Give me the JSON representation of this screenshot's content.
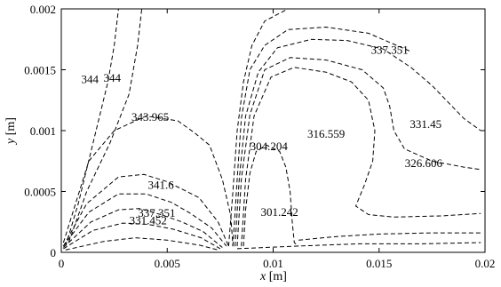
{
  "chart_data": {
    "type": "contour",
    "title": "",
    "xlabel": {
      "var": "x",
      "unit": " [m]"
    },
    "ylabel": {
      "var": "y",
      "unit": " [m]"
    },
    "xlim": [
      0,
      0.02
    ],
    "ylim": [
      0,
      0.002
    ],
    "x_ticks": [
      {
        "value": 0,
        "label": "0"
      },
      {
        "value": 0.005,
        "label": "0.005"
      },
      {
        "value": 0.01,
        "label": "0.01"
      },
      {
        "value": 0.015,
        "label": "0.015"
      },
      {
        "value": 0.02,
        "label": "0.02"
      }
    ],
    "y_ticks": [
      {
        "value": 0,
        "label": "0"
      },
      {
        "value": 0.0005,
        "label": "0.0005"
      },
      {
        "value": 0.001,
        "label": "0.001"
      },
      {
        "value": 0.0015,
        "label": "0.0015"
      },
      {
        "value": 0.002,
        "label": "0.002"
      }
    ],
    "line_style": "dashed",
    "contour_labels": [
      {
        "text": "344",
        "x": 0.00135,
        "y": 0.00142
      },
      {
        "text": "344",
        "x": 0.0024,
        "y": 0.00143
      },
      {
        "text": "343.965",
        "x": 0.0042,
        "y": 0.00111
      },
      {
        "text": "341.6",
        "x": 0.0047,
        "y": 0.00055
      },
      {
        "text": "337.351",
        "x": 0.0045,
        "y": 0.00032
      },
      {
        "text": "331.452",
        "x": 0.0041,
        "y": 0.00026
      },
      {
        "text": "304.204",
        "x": 0.0098,
        "y": 0.00087
      },
      {
        "text": "301.242",
        "x": 0.0103,
        "y": 0.00033
      },
      {
        "text": "316.559",
        "x": 0.0125,
        "y": 0.00097
      },
      {
        "text": "337.351",
        "x": 0.0155,
        "y": 0.00166
      },
      {
        "text": "331.45",
        "x": 0.0172,
        "y": 0.00105
      },
      {
        "text": "326.606",
        "x": 0.0171,
        "y": 0.00073
      }
    ],
    "contours": [
      [
        [
          0.0002,
          5e-05
        ],
        [
          0.0008,
          0.0004
        ],
        [
          0.0015,
          0.0009
        ],
        [
          0.0022,
          0.0014
        ],
        [
          0.0025,
          0.0017
        ],
        [
          0.0027,
          0.002
        ]
      ],
      [
        [
          0.00035,
          8e-05
        ],
        [
          0.0012,
          0.0005
        ],
        [
          0.0023,
          0.0009
        ],
        [
          0.0032,
          0.0013
        ],
        [
          0.0036,
          0.0017
        ],
        [
          0.0038,
          0.002
        ]
      ],
      [
        [
          0.0001,
          8e-05
        ],
        [
          0.0013,
          0.00075
        ],
        [
          0.0025,
          0.001
        ],
        [
          0.004,
          0.00112
        ],
        [
          0.0055,
          0.00108
        ],
        [
          0.0063,
          0.00098
        ],
        [
          0.007,
          0.00088
        ],
        [
          0.0076,
          0.0006
        ],
        [
          0.008,
          0.0003
        ],
        [
          0.0081,
          5e-05
        ]
      ],
      [
        [
          0.0001,
          5e-05
        ],
        [
          0.0012,
          0.0004
        ],
        [
          0.0027,
          0.00062
        ],
        [
          0.0039,
          0.00064
        ],
        [
          0.005,
          0.00058
        ],
        [
          0.0065,
          0.00045
        ],
        [
          0.0074,
          0.00025
        ],
        [
          0.0079,
          5e-05
        ]
      ],
      [
        [
          0.0001,
          5e-05
        ],
        [
          0.0013,
          0.00033
        ],
        [
          0.0027,
          0.00048
        ],
        [
          0.004,
          0.00048
        ],
        [
          0.0052,
          0.00041
        ],
        [
          0.0061,
          0.00032
        ],
        [
          0.0071,
          0.0002
        ],
        [
          0.0078,
          5e-05
        ]
      ],
      [
        [
          0.0001,
          4e-05
        ],
        [
          0.0014,
          0.00025
        ],
        [
          0.0027,
          0.00035
        ],
        [
          0.0037,
          0.00036
        ],
        [
          0.0047,
          0.00031
        ],
        [
          0.0057,
          0.00025
        ],
        [
          0.0067,
          0.00017
        ],
        [
          0.0076,
          4e-05
        ]
      ],
      [
        [
          0.0001,
          3e-05
        ],
        [
          0.0015,
          0.00018
        ],
        [
          0.0029,
          0.00024
        ],
        [
          0.0041,
          0.00023
        ],
        [
          0.0053,
          0.00019
        ],
        [
          0.0066,
          0.00012
        ],
        [
          0.0075,
          3e-05
        ]
      ],
      [
        [
          0.0002,
          2e-05
        ],
        [
          0.002,
          9e-05
        ],
        [
          0.0035,
          0.00012
        ],
        [
          0.005,
          0.0001
        ],
        [
          0.0065,
          6e-05
        ],
        [
          0.0074,
          2e-05
        ]
      ],
      [
        [
          0.0079,
          5e-05
        ],
        [
          0.0081,
          0.0005
        ],
        [
          0.0083,
          0.001
        ],
        [
          0.0086,
          0.0014
        ],
        [
          0.009,
          0.0017
        ],
        [
          0.0096,
          0.0019
        ],
        [
          0.0107,
          0.002
        ]
      ],
      [
        [
          0.0081,
          5e-05
        ],
        [
          0.0083,
          0.0006
        ],
        [
          0.0085,
          0.0011
        ],
        [
          0.0089,
          0.0015
        ],
        [
          0.0096,
          0.0017
        ],
        [
          0.0107,
          0.00183
        ],
        [
          0.0125,
          0.00185
        ],
        [
          0.0145,
          0.0018
        ],
        [
          0.0165,
          0.00165
        ]
      ],
      [
        [
          0.0082,
          5e-05
        ],
        [
          0.0084,
          0.0006
        ],
        [
          0.0087,
          0.00112
        ],
        [
          0.0093,
          0.00148
        ],
        [
          0.0102,
          0.00168
        ],
        [
          0.0118,
          0.00175
        ],
        [
          0.0135,
          0.00174
        ],
        [
          0.0152,
          0.00167
        ],
        [
          0.0165,
          0.00152
        ],
        [
          0.0175,
          0.00137
        ],
        [
          0.019,
          0.0011
        ],
        [
          0.0198,
          0.001
        ]
      ],
      [
        [
          0.0083,
          5e-05
        ],
        [
          0.0085,
          0.0006
        ],
        [
          0.0089,
          0.00113
        ],
        [
          0.0096,
          0.0015
        ],
        [
          0.0108,
          0.0016
        ],
        [
          0.0125,
          0.00158
        ],
        [
          0.0142,
          0.0015
        ],
        [
          0.0152,
          0.00135
        ],
        [
          0.0155,
          0.0012
        ],
        [
          0.0157,
          0.001
        ],
        [
          0.0162,
          0.00085
        ],
        [
          0.0175,
          0.00075
        ],
        [
          0.019,
          0.0007
        ],
        [
          0.0198,
          0.00068
        ]
      ],
      [
        [
          0.0085,
          5e-05
        ],
        [
          0.0087,
          0.0006
        ],
        [
          0.0091,
          0.00112
        ],
        [
          0.0099,
          0.00144
        ],
        [
          0.011,
          0.00152
        ],
        [
          0.0125,
          0.00148
        ],
        [
          0.0137,
          0.0014
        ],
        [
          0.0145,
          0.00125
        ],
        [
          0.0148,
          0.001
        ],
        [
          0.0147,
          0.00075
        ],
        [
          0.0143,
          0.00055
        ],
        [
          0.0139,
          0.00038
        ],
        [
          0.0145,
          0.00031
        ],
        [
          0.0157,
          0.00029
        ],
        [
          0.018,
          0.0003
        ],
        [
          0.0198,
          0.00032
        ]
      ],
      [
        [
          0.0086,
          5e-05
        ],
        [
          0.0087,
          0.00035
        ],
        [
          0.0089,
          0.00065
        ],
        [
          0.0092,
          0.00083
        ],
        [
          0.0097,
          0.00088
        ],
        [
          0.0103,
          0.00083
        ],
        [
          0.0106,
          0.0007
        ],
        [
          0.0108,
          0.0005
        ],
        [
          0.0109,
          0.00025
        ],
        [
          0.011,
          8e-05
        ],
        [
          0.0112,
          5e-05
        ]
      ],
      [
        [
          0.0112,
          0.0001
        ],
        [
          0.013,
          0.00013
        ],
        [
          0.015,
          0.00015
        ],
        [
          0.0175,
          0.00016
        ],
        [
          0.0198,
          0.00016
        ]
      ],
      [
        [
          0.0083,
          3e-05
        ],
        [
          0.011,
          5e-05
        ],
        [
          0.014,
          7e-05
        ],
        [
          0.017,
          7e-05
        ],
        [
          0.0198,
          8e-05
        ]
      ]
    ]
  }
}
